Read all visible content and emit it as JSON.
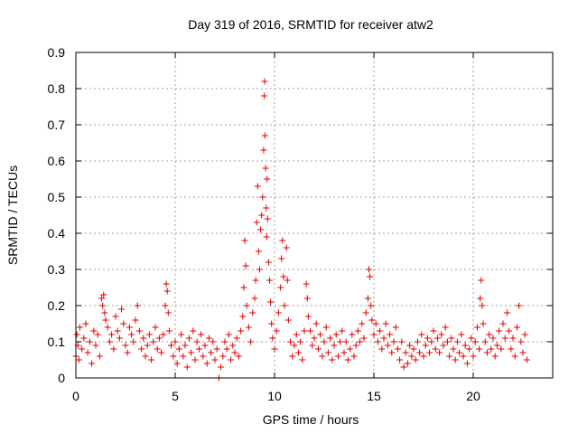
{
  "chart_data": {
    "type": "scatter",
    "title": "Day 319 of 2016, SRMTID for receiver atw2",
    "xlabel": "GPS time / hours",
    "ylabel": "SRMTID / TECUs",
    "xlim": [
      0,
      24
    ],
    "ylim": [
      0,
      0.9
    ],
    "xticks": [
      0,
      5,
      10,
      15,
      20
    ],
    "xtick_labels": [
      "0",
      "5",
      "10",
      "15",
      "20"
    ],
    "yticks": [
      0,
      0.1,
      0.2,
      0.3,
      0.4,
      0.5,
      0.6,
      0.7,
      0.8,
      0.9
    ],
    "ytick_labels": [
      "0",
      "0.1",
      "0.2",
      "0.3",
      "0.4",
      "0.5",
      "0.6",
      "0.7",
      "0.8",
      "0.9"
    ],
    "grid": true,
    "marker": "plus",
    "color": "#e00000",
    "series": [
      {
        "name": "SRMTID",
        "points": [
          [
            0.0,
            0.06
          ],
          [
            0.05,
            0.12
          ],
          [
            0.1,
            0.09
          ],
          [
            0.15,
            0.05
          ],
          [
            0.2,
            0.14
          ],
          [
            0.3,
            0.08
          ],
          [
            0.4,
            0.11
          ],
          [
            0.5,
            0.15
          ],
          [
            0.6,
            0.07
          ],
          [
            0.7,
            0.1
          ],
          [
            0.8,
            0.04
          ],
          [
            0.9,
            0.13
          ],
          [
            1.0,
            0.09
          ],
          [
            1.1,
            0.12
          ],
          [
            1.2,
            0.06
          ],
          [
            1.3,
            0.22
          ],
          [
            1.35,
            0.2
          ],
          [
            1.4,
            0.23
          ],
          [
            1.45,
            0.18
          ],
          [
            1.5,
            0.16
          ],
          [
            1.6,
            0.14
          ],
          [
            1.7,
            0.1
          ],
          [
            1.8,
            0.12
          ],
          [
            1.9,
            0.08
          ],
          [
            2.0,
            0.17
          ],
          [
            2.1,
            0.13
          ],
          [
            2.2,
            0.11
          ],
          [
            2.3,
            0.19
          ],
          [
            2.4,
            0.15
          ],
          [
            2.5,
            0.09
          ],
          [
            2.6,
            0.07
          ],
          [
            2.7,
            0.14
          ],
          [
            2.8,
            0.12
          ],
          [
            2.9,
            0.1
          ],
          [
            3.0,
            0.16
          ],
          [
            3.1,
            0.2
          ],
          [
            3.2,
            0.13
          ],
          [
            3.3,
            0.08
          ],
          [
            3.4,
            0.11
          ],
          [
            3.5,
            0.06
          ],
          [
            3.6,
            0.09
          ],
          [
            3.7,
            0.12
          ],
          [
            3.8,
            0.05
          ],
          [
            3.9,
            0.1
          ],
          [
            4.0,
            0.14
          ],
          [
            4.1,
            0.08
          ],
          [
            4.2,
            0.11
          ],
          [
            4.3,
            0.07
          ],
          [
            4.4,
            0.12
          ],
          [
            4.5,
            0.2
          ],
          [
            4.55,
            0.26
          ],
          [
            4.6,
            0.24
          ],
          [
            4.65,
            0.18
          ],
          [
            4.7,
            0.13
          ],
          [
            4.8,
            0.09
          ],
          [
            4.9,
            0.06
          ],
          [
            5.0,
            0.1
          ],
          [
            5.1,
            0.04
          ],
          [
            5.2,
            0.08
          ],
          [
            5.3,
            0.12
          ],
          [
            5.4,
            0.06
          ],
          [
            5.5,
            0.09
          ],
          [
            5.6,
            0.03
          ],
          [
            5.7,
            0.11
          ],
          [
            5.8,
            0.07
          ],
          [
            5.9,
            0.13
          ],
          [
            6.0,
            0.05
          ],
          [
            6.1,
            0.1
          ],
          [
            6.2,
            0.08
          ],
          [
            6.3,
            0.12
          ],
          [
            6.4,
            0.06
          ],
          [
            6.5,
            0.09
          ],
          [
            6.6,
            0.04
          ],
          [
            6.7,
            0.11
          ],
          [
            6.8,
            0.07
          ],
          [
            6.9,
            0.1
          ],
          [
            7.0,
            0.05
          ],
          [
            7.1,
            0.08
          ],
          [
            7.2,
            0.0
          ],
          [
            7.3,
            0.03
          ],
          [
            7.4,
            0.06
          ],
          [
            7.5,
            0.1
          ],
          [
            7.6,
            0.08
          ],
          [
            7.7,
            0.12
          ],
          [
            7.8,
            0.05
          ],
          [
            7.9,
            0.09
          ],
          [
            8.0,
            0.07
          ],
          [
            8.1,
            0.11
          ],
          [
            8.2,
            0.06
          ],
          [
            8.3,
            0.13
          ],
          [
            8.4,
            0.17
          ],
          [
            8.45,
            0.25
          ],
          [
            8.5,
            0.38
          ],
          [
            8.55,
            0.31
          ],
          [
            8.6,
            0.2
          ],
          [
            8.7,
            0.14
          ],
          [
            8.8,
            0.1
          ],
          [
            8.9,
            0.18
          ],
          [
            9.0,
            0.22
          ],
          [
            9.05,
            0.27
          ],
          [
            9.1,
            0.43
          ],
          [
            9.15,
            0.53
          ],
          [
            9.2,
            0.35
          ],
          [
            9.25,
            0.3
          ],
          [
            9.3,
            0.41
          ],
          [
            9.35,
            0.45
          ],
          [
            9.4,
            0.5
          ],
          [
            9.45,
            0.63
          ],
          [
            9.48,
            0.78
          ],
          [
            9.5,
            0.82
          ],
          [
            9.52,
            0.67
          ],
          [
            9.55,
            0.58
          ],
          [
            9.58,
            0.47
          ],
          [
            9.6,
            0.39
          ],
          [
            9.62,
            0.55
          ],
          [
            9.65,
            0.44
          ],
          [
            9.7,
            0.32
          ],
          [
            9.75,
            0.27
          ],
          [
            9.8,
            0.21
          ],
          [
            9.85,
            0.15
          ],
          [
            9.9,
            0.11
          ],
          [
            10.0,
            0.08
          ],
          [
            10.1,
            0.13
          ],
          [
            10.2,
            0.18
          ],
          [
            10.3,
            0.25
          ],
          [
            10.35,
            0.33
          ],
          [
            10.4,
            0.38
          ],
          [
            10.45,
            0.28
          ],
          [
            10.5,
            0.2
          ],
          [
            10.6,
            0.36
          ],
          [
            10.65,
            0.27
          ],
          [
            10.7,
            0.16
          ],
          [
            10.8,
            0.1
          ],
          [
            10.9,
            0.06
          ],
          [
            11.0,
            0.09
          ],
          [
            11.1,
            0.12
          ],
          [
            11.2,
            0.07
          ],
          [
            11.3,
            0.1
          ],
          [
            11.4,
            0.05
          ],
          [
            11.5,
            0.13
          ],
          [
            11.6,
            0.26
          ],
          [
            11.65,
            0.22
          ],
          [
            11.7,
            0.17
          ],
          [
            11.8,
            0.13
          ],
          [
            11.9,
            0.09
          ],
          [
            12.0,
            0.11
          ],
          [
            12.1,
            0.15
          ],
          [
            12.2,
            0.08
          ],
          [
            12.3,
            0.12
          ],
          [
            12.4,
            0.06
          ],
          [
            12.5,
            0.1
          ],
          [
            12.6,
            0.14
          ],
          [
            12.7,
            0.07
          ],
          [
            12.8,
            0.11
          ],
          [
            12.9,
            0.05
          ],
          [
            13.0,
            0.09
          ],
          [
            13.1,
            0.12
          ],
          [
            13.2,
            0.06
          ],
          [
            13.3,
            0.1
          ],
          [
            13.4,
            0.13
          ],
          [
            13.5,
            0.07
          ],
          [
            13.6,
            0.1
          ],
          [
            13.7,
            0.05
          ],
          [
            13.8,
            0.08
          ],
          [
            13.9,
            0.12
          ],
          [
            14.0,
            0.06
          ],
          [
            14.1,
            0.09
          ],
          [
            14.2,
            0.13
          ],
          [
            14.3,
            0.1
          ],
          [
            14.4,
            0.15
          ],
          [
            14.5,
            0.11
          ],
          [
            14.6,
            0.18
          ],
          [
            14.7,
            0.22
          ],
          [
            14.75,
            0.3
          ],
          [
            14.8,
            0.28
          ],
          [
            14.85,
            0.2
          ],
          [
            14.9,
            0.16
          ],
          [
            15.0,
            0.12
          ],
          [
            15.1,
            0.15
          ],
          [
            15.2,
            0.1
          ],
          [
            15.3,
            0.13
          ],
          [
            15.4,
            0.08
          ],
          [
            15.5,
            0.11
          ],
          [
            15.6,
            0.15
          ],
          [
            15.7,
            0.09
          ],
          [
            15.8,
            0.12
          ],
          [
            15.9,
            0.07
          ],
          [
            16.0,
            0.1
          ],
          [
            16.1,
            0.14
          ],
          [
            16.2,
            0.08
          ],
          [
            16.3,
            0.05
          ],
          [
            16.4,
            0.1
          ],
          [
            16.5,
            0.03
          ],
          [
            16.6,
            0.07
          ],
          [
            16.7,
            0.04
          ],
          [
            16.8,
            0.09
          ],
          [
            16.9,
            0.06
          ],
          [
            17.0,
            0.08
          ],
          [
            17.1,
            0.05
          ],
          [
            17.2,
            0.1
          ],
          [
            17.3,
            0.07
          ],
          [
            17.4,
            0.12
          ],
          [
            17.5,
            0.06
          ],
          [
            17.6,
            0.09
          ],
          [
            17.7,
            0.11
          ],
          [
            17.8,
            0.07
          ],
          [
            17.9,
            0.1
          ],
          [
            18.0,
            0.13
          ],
          [
            18.1,
            0.08
          ],
          [
            18.2,
            0.11
          ],
          [
            18.3,
            0.07
          ],
          [
            18.4,
            0.12
          ],
          [
            18.5,
            0.09
          ],
          [
            18.6,
            0.14
          ],
          [
            18.7,
            0.1
          ],
          [
            18.8,
            0.06
          ],
          [
            18.9,
            0.11
          ],
          [
            19.0,
            0.08
          ],
          [
            19.1,
            0.05
          ],
          [
            19.2,
            0.1
          ],
          [
            19.3,
            0.07
          ],
          [
            19.4,
            0.12
          ],
          [
            19.5,
            0.06
          ],
          [
            19.6,
            0.09
          ],
          [
            19.7,
            0.04
          ],
          [
            19.8,
            0.08
          ],
          [
            19.9,
            0.11
          ],
          [
            20.0,
            0.06
          ],
          [
            20.1,
            0.1
          ],
          [
            20.2,
            0.14
          ],
          [
            20.3,
            0.08
          ],
          [
            20.35,
            0.22
          ],
          [
            20.4,
            0.27
          ],
          [
            20.45,
            0.2
          ],
          [
            20.5,
            0.15
          ],
          [
            20.6,
            0.1
          ],
          [
            20.7,
            0.07
          ],
          [
            20.8,
            0.12
          ],
          [
            20.9,
            0.08
          ],
          [
            21.0,
            0.11
          ],
          [
            21.1,
            0.06
          ],
          [
            21.2,
            0.09
          ],
          [
            21.3,
            0.13
          ],
          [
            21.4,
            0.08
          ],
          [
            21.5,
            0.15
          ],
          [
            21.6,
            0.11
          ],
          [
            21.7,
            0.18
          ],
          [
            21.8,
            0.13
          ],
          [
            21.9,
            0.08
          ],
          [
            22.0,
            0.11
          ],
          [
            22.1,
            0.06
          ],
          [
            22.2,
            0.14
          ],
          [
            22.3,
            0.2
          ],
          [
            22.4,
            0.1
          ],
          [
            22.5,
            0.07
          ],
          [
            22.6,
            0.12
          ],
          [
            22.7,
            0.05
          ]
        ]
      }
    ]
  }
}
